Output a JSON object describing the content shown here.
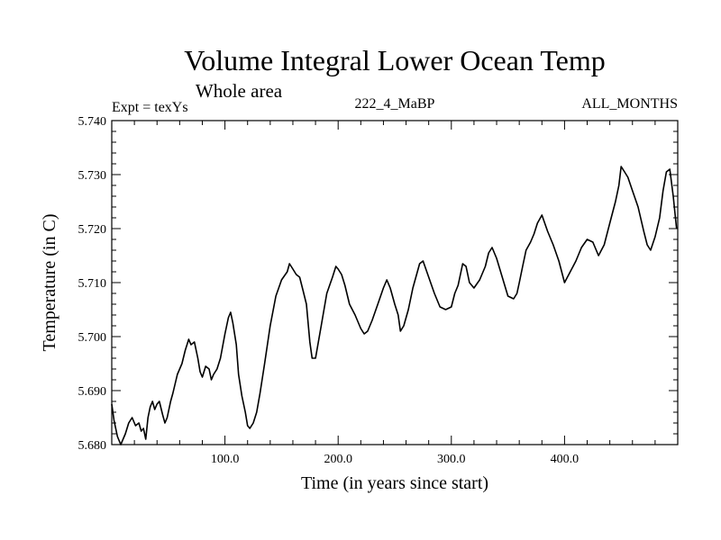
{
  "chart_data": {
    "type": "line",
    "title": "Volume Integral Lower Ocean Temp",
    "subtitle": "Whole area",
    "header_left": "Expt = texYs",
    "header_center": "222_4_MaBP",
    "header_right": "ALL_MONTHS",
    "xlabel": "Time (in years since start)",
    "ylabel": "Temperature (in C)",
    "xlim": [
      0,
      500
    ],
    "ylim": [
      5.68,
      5.74
    ],
    "xticks": [
      100,
      200,
      300,
      400
    ],
    "xtick_labels": [
      "100.0",
      "200.0",
      "300.0",
      "400.0"
    ],
    "yticks": [
      5.68,
      5.69,
      5.7,
      5.71,
      5.72,
      5.73,
      5.74
    ],
    "ytick_labels": [
      "5.680",
      "5.690",
      "5.700",
      "5.710",
      "5.720",
      "5.730",
      "5.740"
    ],
    "grid": false,
    "line_color": "#000000",
    "series": [
      {
        "x": [
          0,
          2,
          5,
          8,
          12,
          15,
          18,
          21,
          24,
          26,
          28,
          30,
          32,
          34,
          36,
          38,
          40,
          42,
          45,
          47,
          49,
          52,
          54,
          58,
          62,
          65,
          68,
          70,
          73,
          76,
          78,
          80,
          83,
          86,
          88,
          90,
          93,
          96,
          100,
          103,
          105,
          107,
          110,
          112,
          115,
          118,
          120,
          122,
          125,
          128,
          131,
          135,
          140,
          145,
          150,
          155,
          157,
          160,
          163,
          166,
          169,
          172,
          175,
          177,
          180,
          185,
          190,
          195,
          198,
          200,
          203,
          206,
          210,
          215,
          220,
          223,
          226,
          230,
          235,
          240,
          243,
          246,
          250,
          253,
          255,
          258,
          262,
          266,
          270,
          272,
          275,
          280,
          285,
          290,
          295,
          300,
          303,
          306,
          310,
          313,
          316,
          320,
          325,
          330,
          333,
          336,
          340,
          345,
          350,
          355,
          358,
          360,
          363,
          366,
          370,
          373,
          376,
          380,
          385,
          390,
          395,
          400,
          405,
          410,
          415,
          420,
          425,
          430,
          435,
          440,
          445,
          448,
          450,
          453,
          456,
          460,
          465,
          470,
          473,
          476,
          480,
          484,
          487,
          490,
          493,
          496,
          499
        ],
        "y": [
          5.6875,
          5.6845,
          5.6815,
          5.68,
          5.682,
          5.684,
          5.685,
          5.6835,
          5.684,
          5.6825,
          5.683,
          5.681,
          5.685,
          5.687,
          5.688,
          5.6865,
          5.6875,
          5.688,
          5.6855,
          5.684,
          5.685,
          5.688,
          5.6895,
          5.693,
          5.695,
          5.6975,
          5.6995,
          5.6985,
          5.699,
          5.696,
          5.6935,
          5.6925,
          5.6945,
          5.694,
          5.692,
          5.693,
          5.694,
          5.696,
          5.7005,
          5.7035,
          5.7045,
          5.7025,
          5.6985,
          5.693,
          5.689,
          5.686,
          5.6835,
          5.683,
          5.684,
          5.686,
          5.6895,
          5.695,
          5.702,
          5.7075,
          5.7105,
          5.712,
          5.7135,
          5.7125,
          5.7115,
          5.711,
          5.7085,
          5.706,
          5.699,
          5.696,
          5.696,
          5.702,
          5.708,
          5.711,
          5.713,
          5.7125,
          5.7115,
          5.7095,
          5.706,
          5.704,
          5.7015,
          5.7005,
          5.701,
          5.703,
          5.706,
          5.709,
          5.7105,
          5.709,
          5.706,
          5.704,
          5.701,
          5.702,
          5.705,
          5.709,
          5.712,
          5.7135,
          5.714,
          5.711,
          5.708,
          5.7055,
          5.705,
          5.7055,
          5.708,
          5.7095,
          5.7135,
          5.713,
          5.71,
          5.709,
          5.7105,
          5.713,
          5.7155,
          5.7165,
          5.7145,
          5.711,
          5.7075,
          5.707,
          5.708,
          5.71,
          5.713,
          5.716,
          5.7175,
          5.719,
          5.721,
          5.7225,
          5.7195,
          5.717,
          5.714,
          5.71,
          5.712,
          5.714,
          5.7165,
          5.718,
          5.7175,
          5.715,
          5.717,
          5.721,
          5.725,
          5.728,
          5.7315,
          5.7305,
          5.7295,
          5.727,
          5.724,
          5.7195,
          5.717,
          5.716,
          5.7185,
          5.722,
          5.727,
          5.7305,
          5.731,
          5.726,
          5.72
        ]
      }
    ]
  }
}
